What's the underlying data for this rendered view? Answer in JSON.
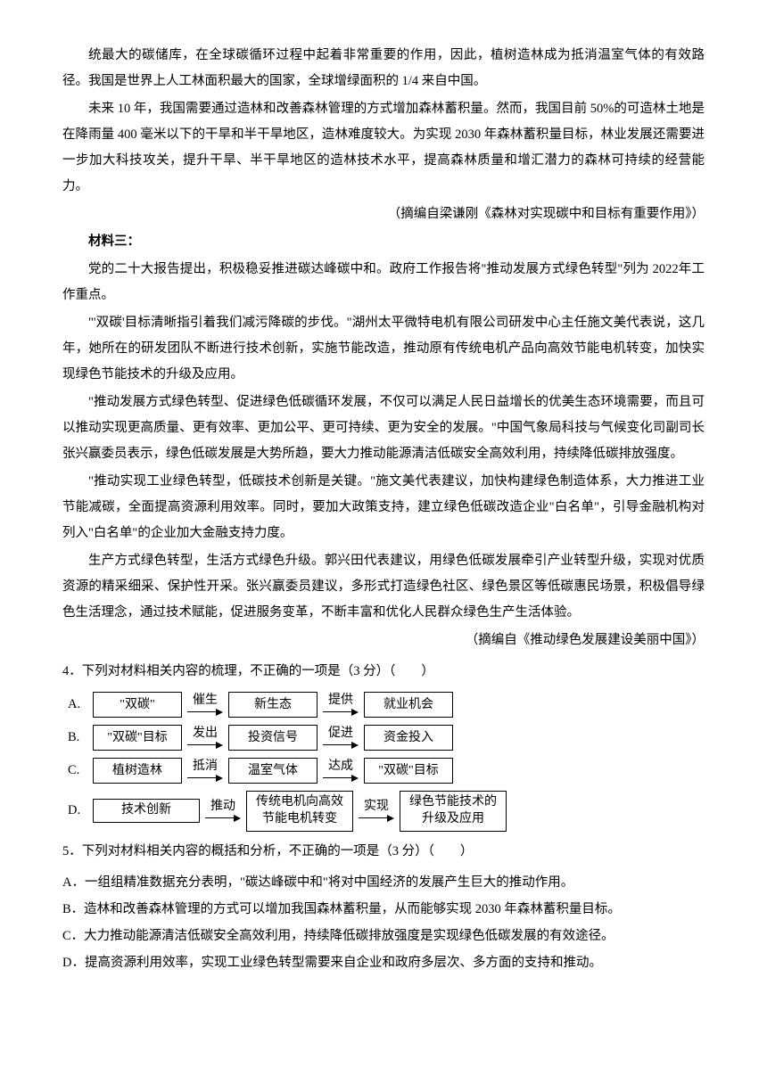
{
  "p1": "统最大的碳储库，在全球碳循环过程中起着非常重要的作用，因此，植树造林成为抵消温室气体的有效路径。我国是世界上人工林面积最大的国家，全球增绿面积的 1/4 来自中国。",
  "p2": "未来 10 年，我国需要通过造林和改善森林管理的方式增加森林蓄积量。然而，我国目前 50%的可造林土地是在降雨量 400 毫米以下的干旱和半干旱地区，造林难度较大。为实现 2030 年森林蓄积量目标，林业发展还需要进一步加大科技攻关，提升干旱、半干旱地区的造林技术水平，提高森林质量和增汇潜力的森林可持续的经营能力。",
  "source2": "（摘编自梁谦刚《森林对实现碳中和目标有重要作用》）",
  "section3": "材料三：",
  "p3": "党的二十大报告提出，积极稳妥推进碳达峰碳中和。政府工作报告将\"推动发展方式绿色转型\"列为 2022年工作重点。",
  "p4": "\"'双碳'目标清晰指引着我们减污降碳的步伐。\"湖州太平微特电机有限公司研发中心主任施文美代表说，这几年，她所在的研发团队不断进行技术创新，实施节能改造，推动原有传统电机产品向高效节能电机转变，加快实现绿色节能技术的升级及应用。",
  "p5": "\"推动发展方式绿色转型、促进绿色低碳循环发展，不仅可以满足人民日益增长的优美生态环境需要，而且可以推动实现更高质量、更有效率、更加公平、更可持续、更为安全的发展。\"中国气象局科技与气候变化司副司长张兴赢委员表示，绿色低碳发展是大势所趋，要大力推动能源清洁低碳安全高效利用，持续降低碳排放强度。",
  "p6": "\"推动实现工业绿色转型，低碳技术创新是关键。\"施文美代表建议，加快构建绿色制造体系，大力推进工业节能减碳，全面提高资源利用效率。同时，要加大政策支持，建立绿色低碳改造企业\"白名单\"，引导金融机构对列入\"白名单\"的企业加大金融支持力度。",
  "p7": "生产方式绿色转型，生活方式绿色升级。郭兴田代表建议，用绿色低碳发展牵引产业转型升级，实现对优质资源的精采细采、保护性开采。张兴赢委员建议，多形式打造绿色社区、绿色景区等低碳惠民场景，积极倡导绿色生活理念，通过技术赋能，促进服务变革，不断丰富和优化人民群众绿色生产生活体验。",
  "source3": "（摘编自《推动绿色发展建设美丽中国》）",
  "q4": "4．下列对材料相关内容的梳理，不正确的一项是（3 分）（　　）",
  "rows": [
    {
      "label": "A.",
      "b1": "\"双碳\"",
      "a1": "催生",
      "b2": "新生态",
      "a2": "提供",
      "b3": "就业机会"
    },
    {
      "label": "B.",
      "b1": "\"双碳\"目标",
      "a1": "发出",
      "b2": "投资信号",
      "a2": "促进",
      "b3": "资金投入"
    },
    {
      "label": "C.",
      "b1": "植树造林",
      "a1": "抵消",
      "b2": "温室气体",
      "a2": "达成",
      "b3": "\"双碳\"目标"
    },
    {
      "label": "D.",
      "b1": "技术创新",
      "a1": "推动",
      "b2": "传统电机向高效\n节能电机转变",
      "a2": "实现",
      "b3": "绿色节能技术的\n升级及应用"
    }
  ],
  "q5": "5．下列对材料相关内容的概括和分析，不正确的一项是（3 分）（　　）",
  "q5a": "A．一组组精准数据充分表明，\"碳达峰碳中和\"将对中国经济的发展产生巨大的推动作用。",
  "q5b": "B．造林和改善森林管理的方式可以增加我国森林蓄积量，从而能够实现 2030 年森林蓄积量目标。",
  "q5c": "C．大力推动能源清洁低碳安全高效利用，持续降低碳排放强度是实现绿色低碳发展的有效途径。",
  "q5d": "D．提高资源利用效率，实现工业绿色转型需要来自企业和政府多层次、多方面的支持和推动。"
}
